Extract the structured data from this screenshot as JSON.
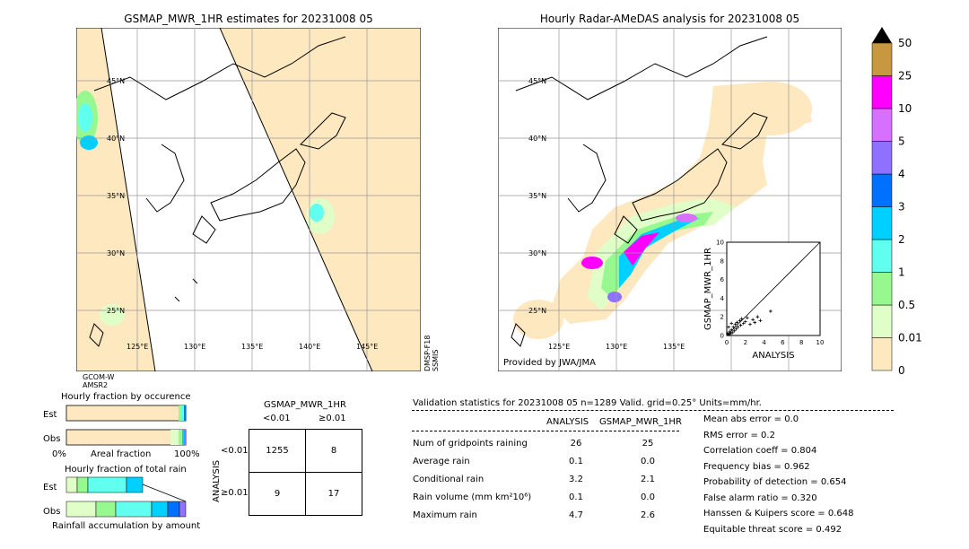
{
  "left_map": {
    "title": "GSMAP_MWR_1HR estimates for 20231008 05",
    "lat_labels": [
      "45°N",
      "40°N",
      "35°N",
      "30°N",
      "25°N"
    ],
    "lon_labels": [
      "125°E",
      "130°E",
      "135°E",
      "140°E",
      "145°E"
    ],
    "sensor_left": "GCOM-W\nAMSR2",
    "sensor_right": "DMSP-F18\nSSMIS"
  },
  "right_map": {
    "title": "Hourly Radar-AMeDAS analysis for 20231008 05",
    "lat_labels": [
      "45°N",
      "40°N",
      "35°N",
      "30°N",
      "25°N"
    ],
    "lon_labels": [
      "125°E",
      "130°E",
      "135°E"
    ],
    "credit": "Provided by JWA/JMA"
  },
  "colorbar": {
    "levels": [
      "0",
      "0.01",
      "0.5",
      "1",
      "2",
      "3",
      "4",
      "5",
      "10",
      "25",
      "50"
    ],
    "colors": [
      "#fde8c0",
      "#e0ffc8",
      "#98f890",
      "#60fff0",
      "#00d0ff",
      "#0070ff",
      "#9070ff",
      "#d870ff",
      "#ff00ff",
      "#c89840"
    ]
  },
  "fraction_occurrence": {
    "title": "Hourly fraction by occurence",
    "rows": [
      "Est",
      "Obs"
    ],
    "axis_left": "0%",
    "axis_mid": "Areal fraction",
    "axis_right": "100%"
  },
  "fraction_total": {
    "title": "Hourly fraction of total rain",
    "rows": [
      "Est",
      "Obs"
    ],
    "axis_label": "Rainfall accumulation by amount"
  },
  "contingency": {
    "title": "GSMAP_MWR_1HR",
    "col_labels": [
      "<0.01",
      "≥0.01"
    ],
    "row_axis": "ANALYSIS",
    "row_labels": [
      "<0.01",
      "≥0.01"
    ],
    "cells": [
      [
        "1255",
        "8"
      ],
      [
        "9",
        "17"
      ]
    ]
  },
  "validation": {
    "header": "Validation statistics for 20231008 05  n=1289 Valid. grid=0.25°  Units=mm/hr.",
    "col_analysis": "ANALYSIS",
    "col_gsmap": "GSMAP_MWR_1HR",
    "rows": [
      {
        "label": "Num of gridpoints raining",
        "analysis": "26",
        "gsmap": "25"
      },
      {
        "label": "Average rain",
        "analysis": "0.1",
        "gsmap": "0.0"
      },
      {
        "label": "Conditional rain",
        "analysis": "3.2",
        "gsmap": "2.1"
      },
      {
        "label": "Rain volume (mm km²10⁶)",
        "analysis": "0.1",
        "gsmap": "0.0"
      },
      {
        "label": "Maximum rain",
        "analysis": "4.7",
        "gsmap": "2.6"
      }
    ],
    "scores": [
      "Mean abs error =    0.0",
      "RMS error =    0.2",
      "Correlation coeff =  0.804",
      "Frequency bias =  0.962",
      "Probability of detection =  0.654",
      "False alarm ratio =  0.320",
      "Hanssen & Kuipers score =  0.648",
      "Equitable threat score =  0.492"
    ]
  },
  "chart_data": {
    "type": "scatter",
    "xlabel": "ANALYSIS",
    "ylabel": "GSMAP_MWR_1HR",
    "xlim": [
      0,
      10
    ],
    "ylim": [
      0,
      10
    ],
    "ticks": [
      "0",
      "2",
      "4",
      "6",
      "8",
      "10"
    ],
    "points": [
      [
        0.1,
        0.2
      ],
      [
        0.2,
        0.1
      ],
      [
        0.3,
        0.4
      ],
      [
        0.4,
        0.2
      ],
      [
        0.5,
        0.6
      ],
      [
        0.6,
        0.3
      ],
      [
        0.7,
        0.9
      ],
      [
        0.8,
        0.5
      ],
      [
        0.9,
        1.2
      ],
      [
        1.0,
        0.7
      ],
      [
        1.1,
        1.4
      ],
      [
        1.2,
        0.9
      ],
      [
        1.4,
        1.6
      ],
      [
        1.5,
        1.1
      ],
      [
        1.6,
        1.8
      ],
      [
        1.8,
        1.3
      ],
      [
        2.0,
        1.5
      ],
      [
        2.2,
        1.9
      ],
      [
        2.5,
        1.2
      ],
      [
        2.8,
        1.7
      ],
      [
        3.0,
        1.4
      ],
      [
        3.3,
        2.0
      ],
      [
        3.6,
        1.6
      ],
      [
        4.7,
        2.6
      ],
      [
        0.2,
        0.9
      ],
      [
        0.5,
        1.3
      ]
    ]
  }
}
